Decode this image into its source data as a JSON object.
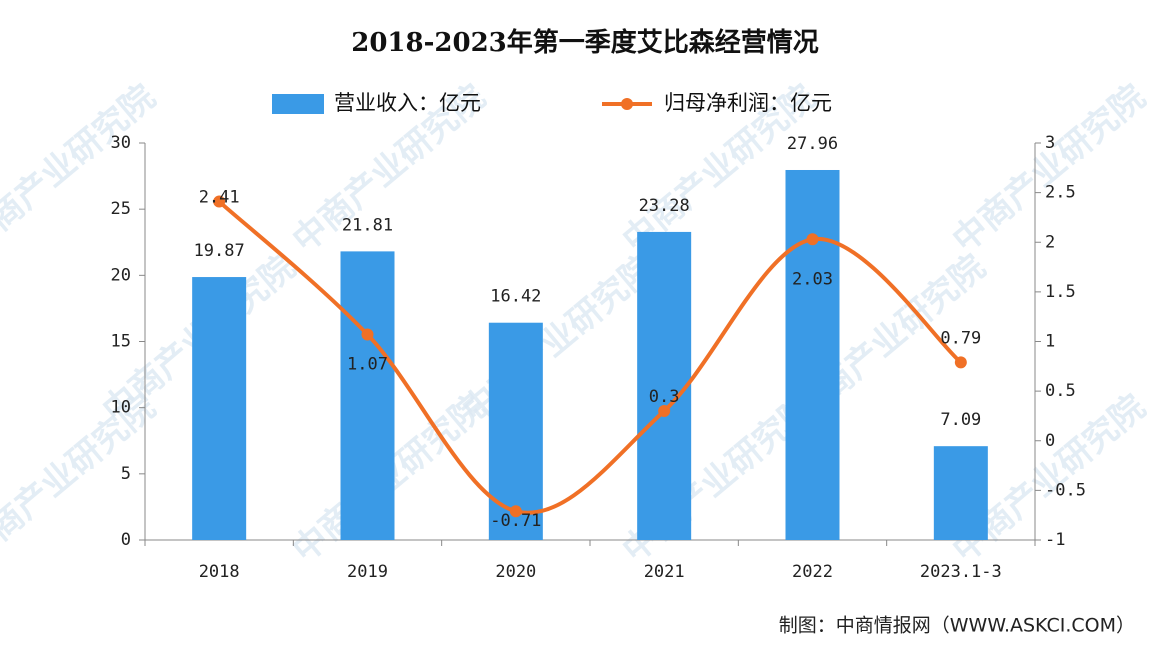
{
  "chart_data": {
    "type": "bar-line",
    "title": "2018-2023年第一季度艾比森经营情况",
    "categories": [
      "2018",
      "2019",
      "2020",
      "2021",
      "2022",
      "2023.1-3"
    ],
    "series": [
      {
        "name": "营业收入：亿元",
        "type": "bar",
        "color": "#3a9ae6",
        "values": [
          19.87,
          21.81,
          16.42,
          23.28,
          27.96,
          7.09
        ]
      },
      {
        "name": "归母净利润：亿元",
        "type": "line",
        "axis": "y2",
        "color": "#f07026",
        "values": [
          2.41,
          1.07,
          -0.71,
          0.3,
          2.03,
          0.79
        ]
      }
    ],
    "ylim": [
      0,
      30
    ],
    "yticks": [
      0,
      5,
      10,
      15,
      20,
      25,
      30
    ],
    "y2lim": [
      -1,
      3
    ],
    "y2ticks": [
      -1,
      -0.5,
      0,
      0.5,
      1,
      1.5,
      2,
      2.5,
      3
    ],
    "legend": "top",
    "source": "制图：中商情报网（WWW.ASKCI.COM）",
    "watermark": "中商产业研究院"
  }
}
